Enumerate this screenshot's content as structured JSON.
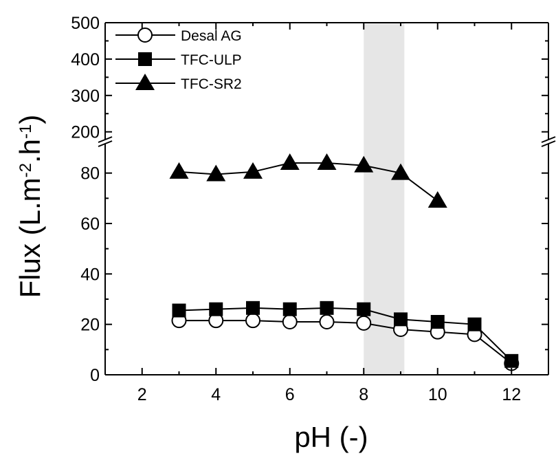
{
  "chart_data": {
    "type": "line",
    "xlabel": "pH (-)",
    "ylabel": "Flux (L.m",
    "ylabel_sup1": "-2",
    "ylabel_mid": ".h",
    "ylabel_sup2": "-1",
    "ylabel_end": ")",
    "xlim": [
      1,
      13
    ],
    "ylim_lower": [
      0,
      90
    ],
    "ylim_upper": [
      190,
      500
    ],
    "axis_break": "y",
    "shaded_region": [
      8,
      9.1
    ],
    "x_ticks": [
      "2",
      "4",
      "6",
      "8",
      "10",
      "12"
    ],
    "y_ticks_lower": [
      "0",
      "20",
      "40",
      "60",
      "80"
    ],
    "y_ticks_upper": [
      "200",
      "300",
      "400",
      "500"
    ],
    "legend_position": "top-left",
    "grid": false,
    "series": [
      {
        "name": "Desal AG",
        "marker": "circle-open",
        "color": "#000000",
        "x": [
          3,
          4,
          5,
          6,
          7,
          8,
          9,
          10,
          11,
          12
        ],
        "y": [
          21.5,
          21.5,
          21.5,
          21,
          21,
          20.5,
          18,
          17,
          16,
          4.5
        ]
      },
      {
        "name": "TFC-ULP",
        "marker": "square-filled",
        "color": "#000000",
        "x": [
          3,
          4,
          5,
          6,
          7,
          8,
          9,
          10,
          11,
          12
        ],
        "y": [
          25.5,
          26,
          26.5,
          26,
          26.5,
          26,
          22,
          21,
          20,
          5.5
        ]
      },
      {
        "name": "TFC-SR2",
        "marker": "triangle-filled",
        "color": "#000000",
        "x": [
          3,
          4,
          5,
          6,
          7,
          8,
          9,
          10
        ],
        "y": [
          80.5,
          79.5,
          80.5,
          84,
          84,
          83,
          80,
          69
        ]
      }
    ]
  }
}
